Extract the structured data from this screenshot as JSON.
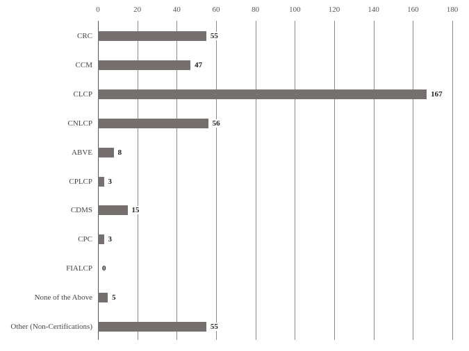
{
  "chart_data": {
    "type": "bar",
    "orientation": "horizontal",
    "title": "",
    "xlabel": "",
    "ylabel": "",
    "categories": [
      "CRC",
      "CCM",
      "CLCP",
      "CNLCP",
      "ABVE",
      "CPLCP",
      "CDMS",
      "CPC",
      "FIALCP",
      "None of the Above",
      "Other (Non-Certifications)"
    ],
    "values": [
      55,
      47,
      167,
      56,
      8,
      3,
      15,
      3,
      0,
      5,
      55
    ],
    "xlim": [
      0,
      180
    ],
    "x_ticks": [
      0,
      20,
      40,
      60,
      80,
      100,
      120,
      140,
      160,
      180
    ],
    "x_axis_position": "top",
    "grid": true,
    "data_labels": true,
    "legend": null,
    "bar_color": "#756f6e"
  }
}
